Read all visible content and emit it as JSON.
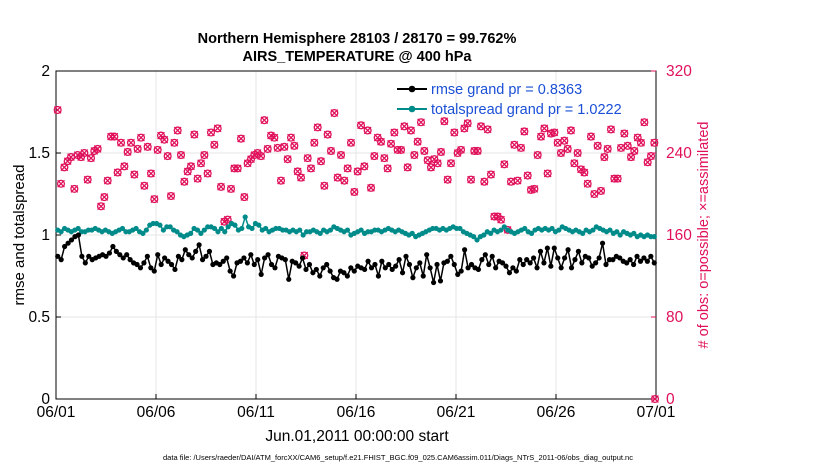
{
  "chart_data": {
    "type": "line",
    "title_line1": "Northern Hemisphere 28103 / 28170 = 99.762%",
    "title_line2": "AIRS_TEMPERATURE @ 400 hPa",
    "ylabel_left": "rmse and totalspread",
    "ylabel_right": "# of obs: o=possible; ×=assimilated",
    "xlabel": "Jun.01,2011 00:00:00 start",
    "footnote": "data file: /Users/raeder/DAI/ATM_forcXX/CAM6_setup/f.e21.FHIST_BGC.f09_025.CAM6assim.011/Diags_NTrS_2011-06/obs_diag_output.nc",
    "x_ticks": [
      "06/01",
      "06/06",
      "06/11",
      "06/16",
      "06/21",
      "06/26",
      "07/01"
    ],
    "x_range_days": [
      0,
      30
    ],
    "ylim_left": [
      0,
      2
    ],
    "y_ticks_left": [
      "0",
      "0.5",
      "1",
      "1.5",
      "2"
    ],
    "ylim_right": [
      0,
      320
    ],
    "y_ticks_right": [
      "0",
      "80",
      "160",
      "240",
      "320"
    ],
    "grid": true,
    "legend_placement": "top-right",
    "colors": {
      "rmse": "#000000",
      "spread": "#008b8b",
      "obs": "#e0105a",
      "title": "#000000",
      "legend_text": "#1a4fd6"
    },
    "series": [
      {
        "name": "rmse grand pr = 0.8363",
        "axis": "left",
        "values": [
          0.87,
          0.85,
          0.93,
          0.95,
          0.97,
          0.99,
          1.0,
          0.87,
          0.83,
          0.87,
          0.85,
          0.86,
          0.87,
          0.88,
          0.87,
          0.89,
          0.93,
          0.9,
          0.88,
          0.86,
          0.88,
          0.85,
          0.83,
          0.82,
          0.8,
          0.83,
          0.87,
          0.8,
          0.78,
          0.88,
          0.82,
          0.86,
          0.84,
          0.82,
          0.79,
          0.87,
          0.85,
          0.91,
          0.88,
          0.86,
          0.9,
          0.94,
          0.85,
          0.87,
          0.9,
          0.82,
          0.83,
          0.82,
          0.84,
          0.86,
          0.78,
          0.75,
          0.83,
          0.84,
          0.86,
          0.83,
          0.88,
          0.82,
          0.85,
          0.76,
          0.86,
          0.88,
          0.82,
          0.8,
          0.87,
          0.86,
          0.85,
          0.73,
          0.84,
          0.83,
          0.81,
          0.86,
          0.79,
          0.82,
          0.77,
          0.79,
          0.75,
          0.8,
          0.82,
          0.78,
          0.74,
          0.73,
          0.78,
          0.77,
          0.75,
          0.8,
          0.78,
          0.81,
          0.8,
          0.79,
          0.84,
          0.8,
          0.82,
          0.75,
          0.84,
          0.8,
          0.82,
          0.79,
          0.81,
          0.85,
          0.77,
          0.87,
          0.82,
          0.74,
          0.8,
          0.83,
          0.75,
          0.88,
          0.8,
          0.71,
          0.82,
          0.72,
          0.83,
          0.84,
          0.87,
          0.82,
          0.76,
          0.78,
          0.91,
          0.8,
          0.82,
          0.8,
          0.79,
          0.85,
          0.88,
          0.82,
          0.87,
          0.8,
          0.84,
          0.83,
          0.81,
          0.77,
          0.8,
          0.78,
          0.85,
          0.82,
          0.85,
          0.83,
          0.86,
          0.8,
          0.9,
          0.83,
          0.92,
          0.81,
          0.92,
          0.86,
          0.8,
          0.86,
          0.91,
          0.8,
          0.85,
          0.9,
          0.83,
          0.87,
          0.86,
          0.81,
          0.83,
          0.86,
          0.95,
          0.82,
          0.85,
          0.85,
          0.87,
          0.86,
          0.84,
          0.83,
          0.85,
          0.82,
          0.87,
          0.84,
          0.86,
          0.84,
          0.87,
          0.83
        ]
      },
      {
        "name": "totalspread grand pr = 1.0222",
        "axis": "left",
        "values": [
          1.03,
          1.02,
          1.04,
          1.03,
          1.02,
          1.03,
          1.04,
          1.02,
          1.02,
          1.03,
          1.03,
          1.04,
          1.03,
          1.02,
          1.03,
          1.02,
          1.01,
          1.02,
          1.03,
          1.04,
          1.02,
          1.02,
          1.03,
          1.04,
          1.02,
          1.01,
          1.03,
          1.06,
          1.07,
          1.07,
          1.06,
          1.03,
          1.05,
          1.05,
          1.03,
          1.02,
          1.0,
          0.99,
          1.0,
          1.01,
          1.04,
          1.03,
          1.01,
          1.03,
          1.05,
          1.05,
          1.04,
          1.02,
          1.04,
          1.02,
          1.05,
          1.07,
          1.06,
          1.03,
          1.04,
          1.11,
          1.05,
          1.04,
          1.07,
          1.06,
          1.03,
          1.04,
          1.02,
          1.03,
          1.04,
          1.04,
          1.03,
          1.03,
          1.02,
          1.03,
          1.02,
          1.03,
          1.0,
          1.02,
          1.02,
          1.03,
          1.02,
          1.01,
          1.03,
          1.02,
          1.03,
          1.05,
          1.04,
          1.03,
          1.02,
          1.03,
          1.0,
          1.01,
          1.02,
          1.03,
          1.01,
          1.02,
          1.02,
          1.03,
          1.03,
          1.02,
          1.03,
          1.04,
          1.03,
          1.02,
          1.03,
          1.02,
          1.01,
          1.0,
          1.01,
          0.99,
          1.0,
          1.01,
          1.02,
          1.03,
          1.04,
          1.04,
          1.03,
          1.04,
          1.03,
          1.04,
          1.05,
          1.04,
          1.04,
          1.02,
          1.01,
          1.0,
          0.99,
          0.97,
          0.99,
          1.0,
          1.02,
          1.01,
          1.03,
          1.02,
          1.03,
          1.05,
          1.03,
          1.02,
          1.01,
          1.02,
          1.03,
          1.04,
          1.02,
          1.01,
          1.03,
          1.04,
          1.03,
          1.04,
          1.03,
          1.04,
          1.02,
          1.03,
          1.05,
          1.04,
          1.03,
          1.02,
          1.03,
          1.02,
          1.01,
          1.03,
          1.02,
          1.03,
          1.05,
          1.04,
          1.03,
          1.02,
          1.03,
          1.01,
          1.02,
          1.0,
          1.02,
          1.01,
          1.0,
          1.01,
          0.99,
          1.0,
          0.99,
          1.0,
          0.99,
          0.99
        ]
      },
      {
        "name": "obs_count",
        "axis": "right",
        "values": [
          282,
          210,
          226,
          232,
          236,
          205,
          238,
          236,
          240,
          214,
          235,
          242,
          244,
          188,
          197,
          213,
          256,
          256,
          221,
          250,
          227,
          241,
          250,
          219,
          244,
          255,
          208,
          246,
          220,
          195,
          243,
          257,
          253,
          237,
          198,
          250,
          262,
          238,
          212,
          222,
          227,
          258,
          215,
          230,
          238,
          220,
          260,
          248,
          264,
          207,
          173,
          175,
          205,
          225,
          225,
          254,
          197,
          230,
          234,
          238,
          240,
          237,
          272,
          244,
          257,
          255,
          245,
          213,
          246,
          234,
          255,
          247,
          222,
          216,
          140,
          235,
          225,
          250,
          265,
          232,
          208,
          258,
          242,
          279,
          216,
          238,
          213,
          225,
          250,
          202,
          222,
          267,
          227,
          262,
          206,
          237,
          255,
          251,
          235,
          225,
          249,
          260,
          243,
          243,
          266,
          226,
          262,
          238,
          251,
          270,
          242,
          233,
          226,
          234,
          230,
          241,
          271,
          214,
          230,
          260,
          240,
          243,
          264,
          269,
          214,
          242,
          242,
          266,
          212,
          263,
          219,
          178,
          178,
          175,
          229,
          165,
          212,
          248,
          213,
          245,
          261,
          218,
          204,
          205,
          238,
          256,
          264,
          220,
          259,
          260,
          250,
          240,
          252,
          244,
          262,
          230,
          240,
          224,
          221,
          210,
          256,
          200,
          247,
          203,
          236,
          244,
          263,
          215,
          215,
          245,
          259,
          247,
          236,
          242,
          255,
          250,
          270,
          231,
          237,
          250
        ]
      },
      {
        "name": "obs_count",
        "axis": "right",
        "x_days": [
          29.95
        ],
        "values": [
          0
        ]
      }
    ]
  }
}
